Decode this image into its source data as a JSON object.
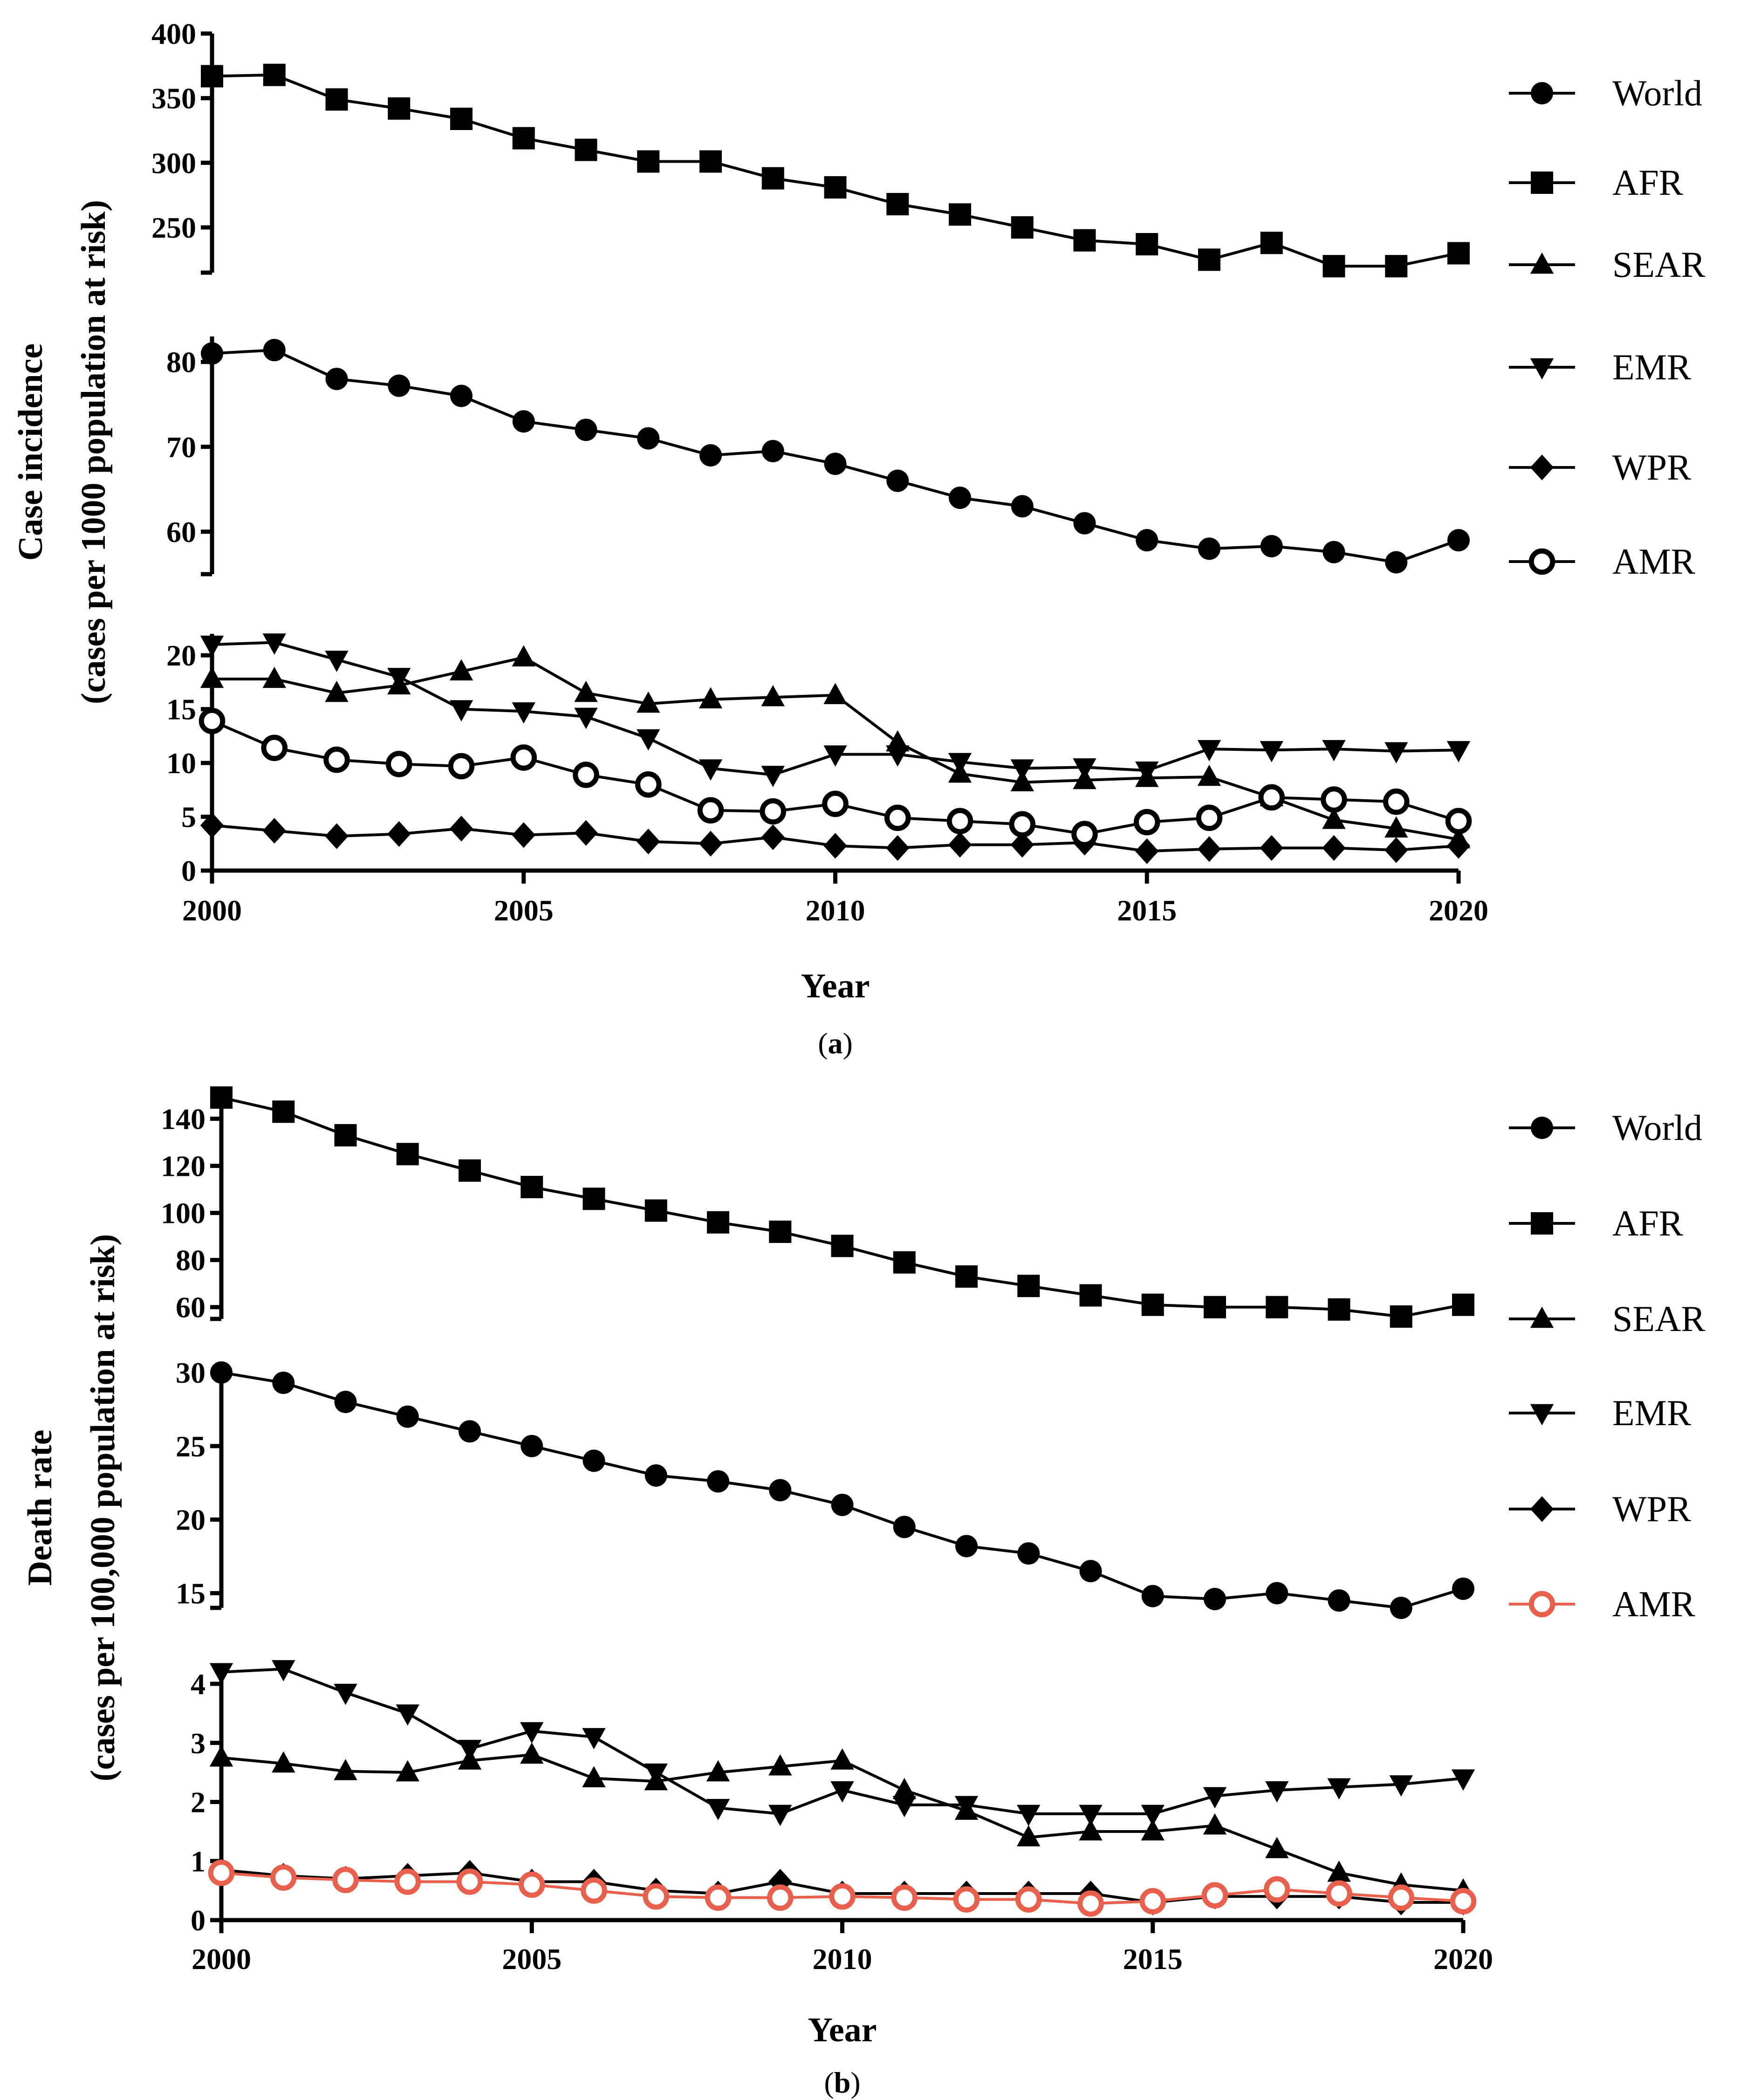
{
  "chart_data": [
    {
      "type": "line",
      "caption_letter": "a",
      "ylabel_line1": "Case incidence",
      "ylabel_line2": "(cases per 1000 population at risk)",
      "xlabel": "Year",
      "x": [
        2000,
        2001,
        2002,
        2003,
        2004,
        2005,
        2006,
        2007,
        2008,
        2009,
        2010,
        2011,
        2012,
        2013,
        2014,
        2015,
        2016,
        2017,
        2018,
        2019,
        2020
      ],
      "x_ticks": [
        "2000",
        "2005",
        "2010",
        "2015",
        "2020"
      ],
      "xlim": [
        2000,
        2020
      ],
      "y_segments": [
        {
          "ylim": [
            215,
            400
          ],
          "ticks": [
            250,
            300,
            350,
            400
          ],
          "tick_labels": [
            "250",
            "300",
            "350",
            "400"
          ]
        },
        {
          "ylim": [
            55,
            83
          ],
          "ticks": [
            60,
            70,
            80
          ],
          "tick_labels": [
            "60",
            "70",
            "80"
          ]
        },
        {
          "ylim": [
            0,
            22
          ],
          "ticks": [
            0,
            5,
            10,
            15,
            20
          ],
          "tick_labels": [
            "0",
            "5",
            "10",
            "15",
            "20"
          ]
        }
      ],
      "series": [
        {
          "name": "World",
          "marker": "circle",
          "segment": 1,
          "color": "#000000",
          "values": [
            81,
            81.4,
            78,
            77.2,
            76,
            73,
            72,
            71,
            69,
            69.5,
            68,
            66,
            64,
            63,
            61,
            59,
            58,
            58.3,
            57.6,
            56.4,
            59
          ]
        },
        {
          "name": "AFR",
          "marker": "square",
          "segment": 0,
          "color": "#000000",
          "values": [
            367,
            368,
            349,
            342,
            334,
            319,
            310,
            301,
            301,
            288,
            281,
            268,
            260,
            250,
            240,
            237,
            225,
            238,
            220,
            220,
            230
          ]
        },
        {
          "name": "SEAR",
          "marker": "triangle-up",
          "segment": 2,
          "color": "#000000",
          "values": [
            17.8,
            17.8,
            16.5,
            17.2,
            18.5,
            19.8,
            16.5,
            15.5,
            15.9,
            16.1,
            16.3,
            11.9,
            9,
            8.2,
            8.4,
            8.6,
            8.7,
            6.8,
            4.7,
            3.9,
            2.9
          ]
        },
        {
          "name": "EMR",
          "marker": "triangle-down",
          "segment": 2,
          "color": "#000000",
          "values": [
            21,
            21.2,
            19.6,
            18,
            15,
            14.8,
            14.3,
            12.3,
            9.5,
            8.9,
            10.8,
            10.8,
            10.1,
            9.5,
            9.6,
            9.3,
            11.3,
            11.2,
            11.3,
            11.1,
            11.2
          ]
        },
        {
          "name": "WPR",
          "marker": "diamond",
          "segment": 2,
          "color": "#000000",
          "values": [
            4.2,
            3.7,
            3.2,
            3.4,
            3.9,
            3.3,
            3.5,
            2.7,
            2.5,
            3.1,
            2.3,
            2.1,
            2.4,
            2.4,
            2.6,
            1.8,
            2,
            2.1,
            2.1,
            1.9,
            2.3
          ]
        },
        {
          "name": "AMR",
          "marker": "open-circle",
          "segment": 2,
          "color": "#000000",
          "values": [
            13.9,
            11.4,
            10.3,
            9.9,
            9.7,
            10.5,
            8.9,
            8,
            5.6,
            5.5,
            6.2,
            4.9,
            4.6,
            4.3,
            3.4,
            4.5,
            4.9,
            6.8,
            6.6,
            6.4,
            4.6
          ]
        }
      ],
      "legend": [
        "World",
        "AFR",
        "SEAR",
        "EMR",
        "WPR",
        "AMR"
      ],
      "legend_position": "right"
    },
    {
      "type": "line",
      "caption_letter": "b",
      "ylabel_line1": "Death rate",
      "ylabel_line2": "(cases per 100,000 population at risk)",
      "xlabel": "Year",
      "x": [
        2000,
        2001,
        2002,
        2003,
        2004,
        2005,
        2006,
        2007,
        2008,
        2009,
        2010,
        2011,
        2012,
        2013,
        2014,
        2015,
        2016,
        2017,
        2018,
        2019,
        2020
      ],
      "x_ticks": [
        "2000",
        "2005",
        "2010",
        "2015",
        "2020"
      ],
      "xlim": [
        2000,
        2020
      ],
      "y_segments": [
        {
          "ylim": [
            55,
            150
          ],
          "ticks": [
            60,
            80,
            100,
            120,
            140
          ],
          "tick_labels": [
            "60",
            "80",
            "100",
            "120",
            "140"
          ]
        },
        {
          "ylim": [
            14,
            30
          ],
          "ticks": [
            15,
            20,
            25,
            30
          ],
          "tick_labels": [
            "15",
            "20",
            "25",
            "30"
          ]
        },
        {
          "ylim": [
            0,
            4.3
          ],
          "ticks": [
            0,
            1,
            2,
            3,
            4
          ],
          "tick_labels": [
            "0",
            "1",
            "2",
            "3",
            "4"
          ]
        }
      ],
      "series": [
        {
          "name": "World",
          "marker": "circle",
          "segment": 1,
          "color": "#000000",
          "values": [
            30,
            29.3,
            28,
            27,
            26,
            25,
            24,
            23,
            22.6,
            22,
            21,
            19.5,
            18.2,
            17.7,
            16.5,
            14.8,
            14.6,
            15,
            14.5,
            14,
            15.3
          ]
        },
        {
          "name": "AFR",
          "marker": "square",
          "segment": 0,
          "color": "#000000",
          "values": [
            149,
            143,
            133,
            125,
            118,
            111,
            106,
            101,
            96,
            92,
            86,
            79,
            73,
            69,
            65,
            61,
            60,
            60,
            59,
            56,
            61
          ]
        },
        {
          "name": "SEAR",
          "marker": "triangle-up",
          "segment": 2,
          "color": "#000000",
          "values": [
            2.75,
            2.65,
            2.52,
            2.5,
            2.7,
            2.8,
            2.4,
            2.35,
            2.5,
            2.6,
            2.7,
            2.2,
            1.85,
            1.4,
            1.5,
            1.5,
            1.6,
            1.2,
            0.8,
            0.6,
            0.5
          ]
        },
        {
          "name": "EMR",
          "marker": "triangle-down",
          "segment": 2,
          "color": "#000000",
          "values": [
            4.2,
            4.25,
            3.85,
            3.5,
            2.9,
            3.2,
            3.1,
            2.5,
            1.9,
            1.8,
            2.2,
            1.95,
            1.95,
            1.8,
            1.8,
            1.8,
            2.1,
            2.2,
            2.25,
            2.3,
            2.4
          ]
        },
        {
          "name": "WPR",
          "marker": "diamond",
          "segment": 2,
          "color": "#000000",
          "values": [
            0.85,
            0.75,
            0.7,
            0.75,
            0.8,
            0.65,
            0.65,
            0.5,
            0.45,
            0.65,
            0.45,
            0.45,
            0.45,
            0.45,
            0.45,
            0.3,
            0.4,
            0.4,
            0.4,
            0.3,
            0.3
          ]
        },
        {
          "name": "AMR",
          "marker": "open-circle",
          "segment": 2,
          "color": "#e8604c",
          "values": [
            0.8,
            0.72,
            0.68,
            0.65,
            0.65,
            0.6,
            0.5,
            0.4,
            0.38,
            0.38,
            0.4,
            0.38,
            0.35,
            0.35,
            0.28,
            0.32,
            0.42,
            0.52,
            0.45,
            0.38,
            0.32
          ]
        }
      ],
      "legend": [
        "World",
        "AFR",
        "SEAR",
        "EMR",
        "WPR",
        "AMR"
      ],
      "legend_position": "right"
    }
  ]
}
